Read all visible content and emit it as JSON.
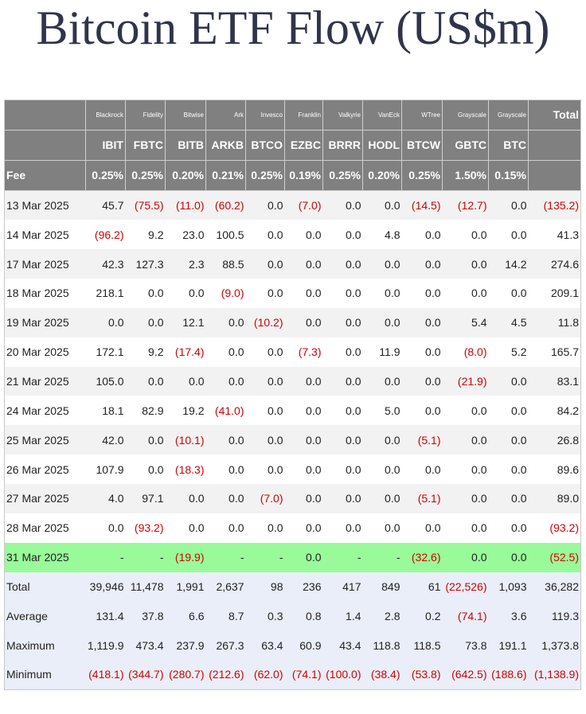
{
  "header": {
    "title": "Bitcoin ETF Flow (US$m)"
  },
  "table": {
    "providers": [
      "Blackrock",
      "Fidelity",
      "Bitwise",
      "Ark",
      "Invesco",
      "Franklin",
      "Valkyrie",
      "VanEck",
      "WTree",
      "Grayscale",
      "Grayscale"
    ],
    "total_label": "Total",
    "tickers": [
      "IBIT",
      "FBTC",
      "BITB",
      "ARKB",
      "BTCO",
      "EZBC",
      "BRRR",
      "HODL",
      "BTCW",
      "GBTC",
      "BTC"
    ],
    "fee_label": "Fee",
    "fees": [
      "0.25%",
      "0.25%",
      "0.20%",
      "0.21%",
      "0.25%",
      "0.19%",
      "0.25%",
      "0.20%",
      "0.25%",
      "1.50%",
      "0.15%"
    ],
    "rows": [
      {
        "date": "13 Mar 2025",
        "cells": [
          "45.7",
          "(75.5)",
          "(11.0)",
          "(60.2)",
          "0.0",
          "(7.0)",
          "0.0",
          "0.0",
          "(14.5)",
          "(12.7)",
          "0.0",
          "(135.2)"
        ]
      },
      {
        "date": "14 Mar 2025",
        "cells": [
          "(96.2)",
          "9.2",
          "23.0",
          "100.5",
          "0.0",
          "0.0",
          "0.0",
          "4.8",
          "0.0",
          "0.0",
          "0.0",
          "41.3"
        ]
      },
      {
        "date": "17 Mar 2025",
        "cells": [
          "42.3",
          "127.3",
          "2.3",
          "88.5",
          "0.0",
          "0.0",
          "0.0",
          "0.0",
          "0.0",
          "0.0",
          "14.2",
          "274.6"
        ]
      },
      {
        "date": "18 Mar 2025",
        "cells": [
          "218.1",
          "0.0",
          "0.0",
          "(9.0)",
          "0.0",
          "0.0",
          "0.0",
          "0.0",
          "0.0",
          "0.0",
          "0.0",
          "209.1"
        ]
      },
      {
        "date": "19 Mar 2025",
        "cells": [
          "0.0",
          "0.0",
          "12.1",
          "0.0",
          "(10.2)",
          "0.0",
          "0.0",
          "0.0",
          "0.0",
          "5.4",
          "4.5",
          "11.8"
        ]
      },
      {
        "date": "20 Mar 2025",
        "cells": [
          "172.1",
          "9.2",
          "(17.4)",
          "0.0",
          "0.0",
          "(7.3)",
          "0.0",
          "11.9",
          "0.0",
          "(8.0)",
          "5.2",
          "165.7"
        ]
      },
      {
        "date": "21 Mar 2025",
        "cells": [
          "105.0",
          "0.0",
          "0.0",
          "0.0",
          "0.0",
          "0.0",
          "0.0",
          "0.0",
          "0.0",
          "(21.9)",
          "0.0",
          "83.1"
        ]
      },
      {
        "date": "24 Mar 2025",
        "cells": [
          "18.1",
          "82.9",
          "19.2",
          "(41.0)",
          "0.0",
          "0.0",
          "0.0",
          "5.0",
          "0.0",
          "0.0",
          "0.0",
          "84.2"
        ]
      },
      {
        "date": "25 Mar 2025",
        "cells": [
          "42.0",
          "0.0",
          "(10.1)",
          "0.0",
          "0.0",
          "0.0",
          "0.0",
          "0.0",
          "(5.1)",
          "0.0",
          "0.0",
          "26.8"
        ]
      },
      {
        "date": "26 Mar 2025",
        "cells": [
          "107.9",
          "0.0",
          "(18.3)",
          "0.0",
          "0.0",
          "0.0",
          "0.0",
          "0.0",
          "0.0",
          "0.0",
          "0.0",
          "89.6"
        ]
      },
      {
        "date": "27 Mar 2025",
        "cells": [
          "4.0",
          "97.1",
          "0.0",
          "0.0",
          "(7.0)",
          "0.0",
          "0.0",
          "0.0",
          "(5.1)",
          "0.0",
          "0.0",
          "89.0"
        ]
      },
      {
        "date": "28 Mar 2025",
        "cells": [
          "0.0",
          "(93.2)",
          "0.0",
          "0.0",
          "0.0",
          "0.0",
          "0.0",
          "0.0",
          "0.0",
          "0.0",
          "0.0",
          "(93.2)"
        ]
      },
      {
        "date": "31 Mar 2025",
        "cells": [
          "-",
          "-",
          "(19.9)",
          "-",
          "-",
          "0.0",
          "-",
          "-",
          "(32.6)",
          "0.0",
          "0.0",
          "(52.5)"
        ]
      }
    ],
    "summary": [
      {
        "label": "Total",
        "cells": [
          "39,946",
          "11,478",
          "1,991",
          "2,637",
          "98",
          "236",
          "417",
          "849",
          "61",
          "(22,526)",
          "1,093",
          "36,282"
        ]
      },
      {
        "label": "Average",
        "cells": [
          "131.4",
          "37.8",
          "6.6",
          "8.7",
          "0.3",
          "0.8",
          "1.4",
          "2.8",
          "0.2",
          "(74.1)",
          "3.6",
          "119.3"
        ]
      },
      {
        "label": "Maximum",
        "cells": [
          "1,119.9",
          "473.4",
          "237.9",
          "267.3",
          "63.4",
          "60.9",
          "43.4",
          "118.8",
          "118.5",
          "73.8",
          "191.1",
          "1,373.8"
        ]
      },
      {
        "label": "Minimum",
        "cells": [
          "(418.1)",
          "(344.7)",
          "(280.7)",
          "(212.6)",
          "(62.0)",
          "(74.1)",
          "(100.0)",
          "(38.4)",
          "(53.8)",
          "(642.5)",
          "(188.6)",
          "(1,138.9)"
        ]
      }
    ]
  }
}
